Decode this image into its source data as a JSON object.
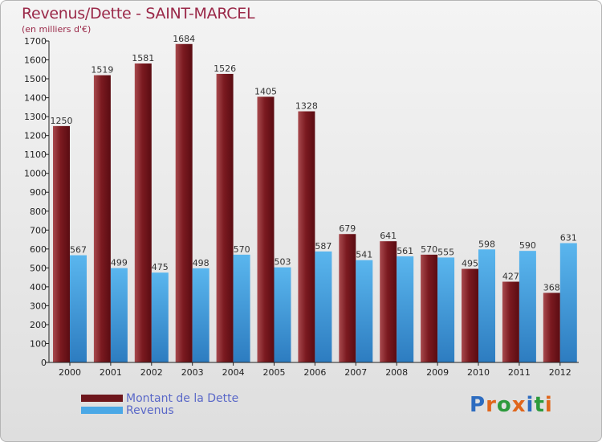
{
  "title": "Revenus/Dette - SAINT-MARCEL",
  "subtitle": "(en milliers d'€)",
  "brand": {
    "text": "Proxiti",
    "colors": [
      "#2d6cc0",
      "#e0661b",
      "#2d9a3c",
      "#e0661b",
      "#2d6cc0",
      "#2d9a3c",
      "#e0661b"
    ]
  },
  "colors": {
    "dette": "#7b1a20",
    "dette_light": "#a84a4e",
    "revenus": "#4aa8e6",
    "revenus_dark": "#2d7cc0",
    "title": "#9a2848",
    "legend_text": "#5a68c8"
  },
  "chart_data": {
    "type": "bar",
    "title": "Revenus/Dette - SAINT-MARCEL",
    "ylabel": "(en milliers d'€)",
    "xlabel": "",
    "categories": [
      "2000",
      "2001",
      "2002",
      "2003",
      "2004",
      "2005",
      "2006",
      "2007",
      "2008",
      "2009",
      "2010",
      "2011",
      "2012"
    ],
    "series": [
      {
        "name": "Montant de la Dette",
        "values": [
          1250,
          1519,
          1581,
          1684,
          1526,
          1405,
          1328,
          679,
          641,
          570,
          495,
          427,
          368
        ]
      },
      {
        "name": "Revenus",
        "values": [
          567,
          499,
          475,
          498,
          570,
          503,
          587,
          541,
          561,
          555,
          598,
          590,
          631
        ]
      }
    ],
    "ylim": [
      0,
      1700
    ],
    "yticks": [
      0,
      100,
      200,
      300,
      400,
      500,
      600,
      700,
      800,
      900,
      1000,
      1100,
      1200,
      1300,
      1400,
      1500,
      1600,
      1700
    ],
    "grid": false,
    "legend": "bottom-left"
  }
}
